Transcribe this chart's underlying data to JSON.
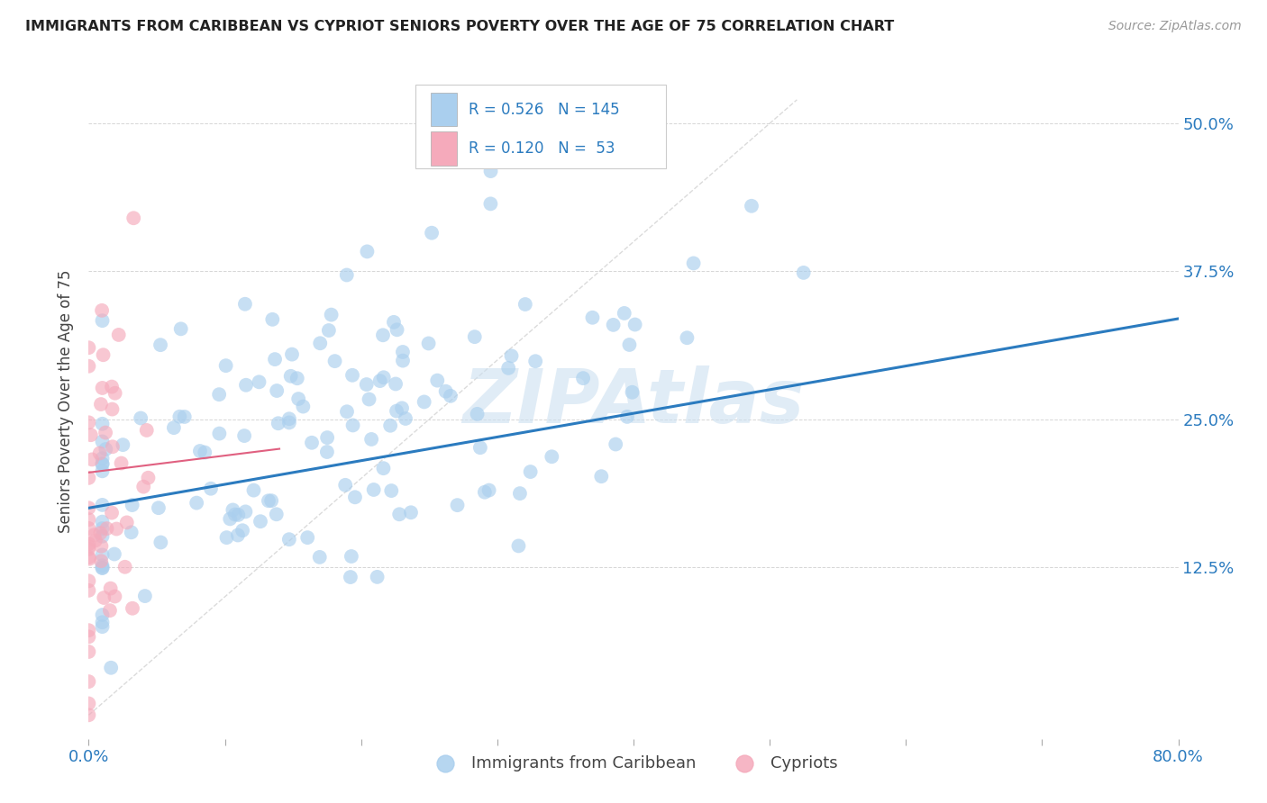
{
  "title": "IMMIGRANTS FROM CARIBBEAN VS CYPRIOT SENIORS POVERTY OVER THE AGE OF 75 CORRELATION CHART",
  "source": "Source: ZipAtlas.com",
  "ylabel": "Seniors Poverty Over the Age of 75",
  "xlim": [
    0.0,
    0.8
  ],
  "ylim": [
    -0.02,
    0.55
  ],
  "xticks": [
    0.0,
    0.1,
    0.2,
    0.3,
    0.4,
    0.5,
    0.6,
    0.7,
    0.8
  ],
  "ytick_positions": [
    0.125,
    0.25,
    0.375,
    0.5
  ],
  "ytick_labels": [
    "12.5%",
    "25.0%",
    "37.5%",
    "50.0%"
  ],
  "legend_entries": [
    {
      "label": "Immigrants from Caribbean",
      "color": "#aacfee",
      "R": "0.526",
      "N": "145"
    },
    {
      "label": "Cypriots",
      "color": "#f5aabb",
      "R": "0.120",
      "N": " 53"
    }
  ],
  "blue_line_color": "#2b7bbf",
  "pink_line_color": "#e06080",
  "diag_line_color": "#cccccc",
  "grid_color": "#cccccc",
  "blue_scatter_color": "#aacfee",
  "pink_scatter_color": "#f5aabb",
  "blue_R": 0.526,
  "pink_R": 0.12,
  "blue_N": 145,
  "pink_N": 53,
  "title_color": "#222222",
  "axis_label_color": "#444444",
  "legend_text_color": "#2b7bbf",
  "right_tick_color": "#2b7bbf",
  "watermark_color": "#cce0f0",
  "background_color": "#ffffff",
  "blue_line_x0": 0.0,
  "blue_line_y0": 0.175,
  "blue_line_x1": 0.8,
  "blue_line_y1": 0.335,
  "pink_line_x0": 0.0,
  "pink_line_y0": 0.205,
  "pink_line_x1": 0.14,
  "pink_line_y1": 0.225
}
